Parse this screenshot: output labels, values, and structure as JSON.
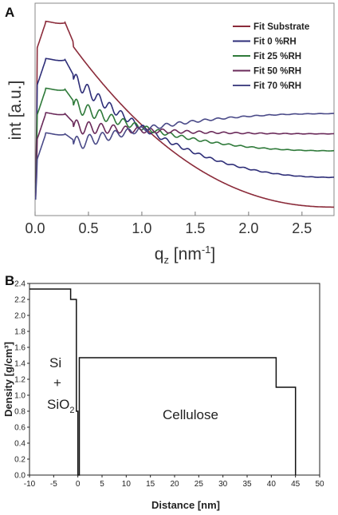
{
  "chart_data": [
    {
      "panel": "A",
      "type": "line",
      "xlabel": "q",
      "xlabel_sub": "z",
      "xlabel_unit_pre": " [nm",
      "xlabel_unit_sup": "-1",
      "xlabel_unit_post": "]",
      "ylabel": "int [a.u.]",
      "xlim": [
        0.0,
        2.8
      ],
      "xticks": [
        "0.0",
        "0.5",
        "1.0",
        "1.5",
        "2.0",
        "2.5"
      ],
      "xtick_values": [
        0.0,
        0.5,
        1.0,
        1.5,
        2.0,
        2.5
      ],
      "legend_position": "top-right",
      "series": [
        {
          "name": "Fit Substrate",
          "color": "#8b2b3a",
          "plateau": 0.91,
          "end": 0.04,
          "fringe_period": 0.0
        },
        {
          "name": "Fit 0 %RH",
          "color": "#2e2e78",
          "plateau": 0.735,
          "end": 0.18,
          "fringe_period": 0.105
        },
        {
          "name": "Fit 25 %RH",
          "color": "#2f7a3a",
          "plateau": 0.595,
          "end": 0.305,
          "fringe_period": 0.11
        },
        {
          "name": "Fit 50 %RH",
          "color": "#6a2a5a",
          "plateau": 0.48,
          "end": 0.385,
          "fringe_period": 0.115
        },
        {
          "name": "Fit 70 %RH",
          "color": "#4a4a88",
          "plateau": 0.385,
          "end": 0.48,
          "fringe_period": 0.12
        }
      ]
    },
    {
      "panel": "B",
      "type": "line",
      "xlabel": "Distance [nm]",
      "ylabel": "Density [g/cm³]",
      "xlim": [
        -10,
        50
      ],
      "ylim": [
        0.0,
        2.4
      ],
      "xticks": [
        "-10",
        "-5",
        "0",
        "5",
        "10",
        "15",
        "20",
        "25",
        "30",
        "35",
        "40",
        "45",
        "50"
      ],
      "xtick_values": [
        -10,
        -5,
        0,
        5,
        10,
        15,
        20,
        25,
        30,
        35,
        40,
        45,
        50
      ],
      "yticks": [
        "0.0",
        "0.2",
        "0.4",
        "0.6",
        "0.8",
        "1.0",
        "1.2",
        "1.4",
        "1.6",
        "1.8",
        "2.0",
        "2.2",
        "2.4"
      ],
      "ytick_values": [
        0.0,
        0.2,
        0.4,
        0.6,
        0.8,
        1.0,
        1.2,
        1.4,
        1.6,
        1.8,
        2.0,
        2.2,
        2.4
      ],
      "profile": {
        "x": [
          -10,
          -1.5,
          -1.5,
          -0.3,
          -0.3,
          0.0,
          0.0,
          0.3,
          0.3,
          41,
          41,
          45,
          45
        ],
        "y": [
          2.33,
          2.33,
          2.2,
          2.2,
          0.8,
          0.8,
          0.0,
          0.0,
          1.47,
          1.47,
          1.1,
          1.1,
          0.0
        ]
      },
      "annotations": {
        "si": "Si",
        "plus": "+",
        "sio2": "SiO",
        "sio2_sub": "2",
        "cellulose": "Cellulose"
      }
    }
  ],
  "panel_labels": {
    "a": "A",
    "b": "B"
  }
}
